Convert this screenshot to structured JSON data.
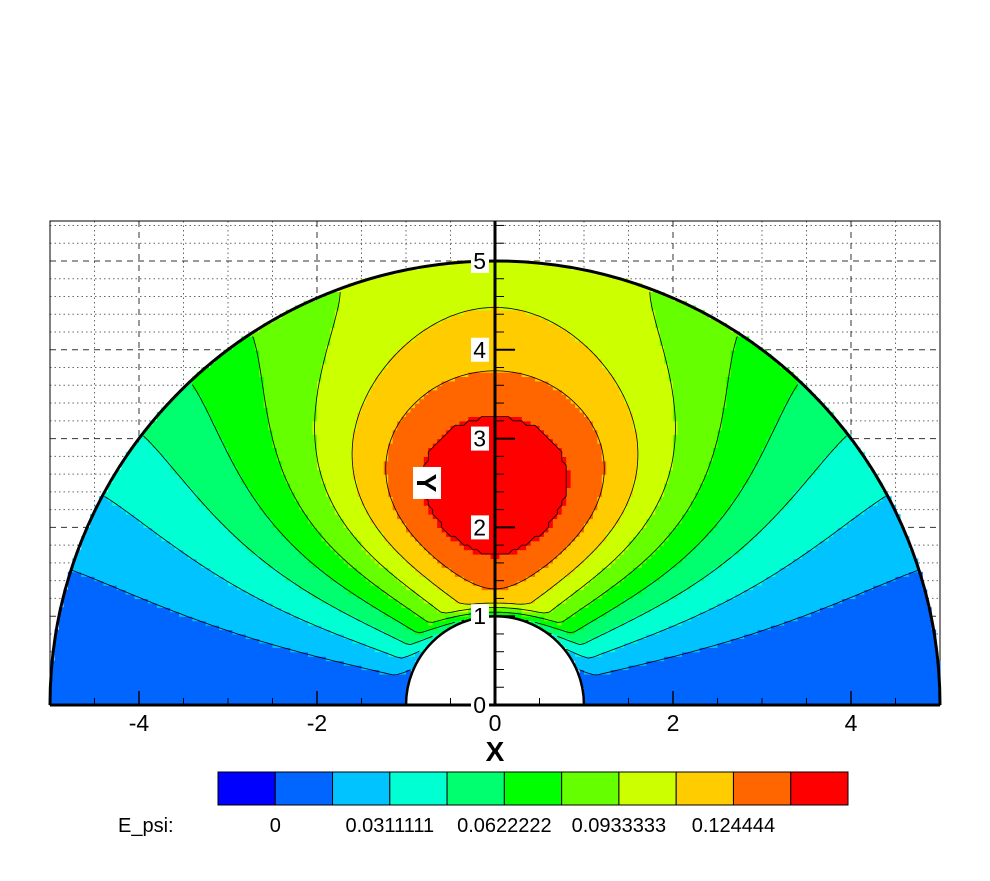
{
  "chart_data": {
    "type": "contour",
    "xlabel": "X",
    "ylabel": "Y",
    "xlim": [
      -5,
      5
    ],
    "ylim": [
      0,
      5.45
    ],
    "x_ticks": [
      -4,
      -2,
      0,
      2,
      4
    ],
    "y_ticks": [
      0,
      1,
      2,
      3,
      4,
      5
    ],
    "grid": true,
    "domain": {
      "shape": "half-annulus",
      "inner_radius": 1,
      "outer_radius": 5
    },
    "field": {
      "name": "E_psi",
      "peak_value": 0.14,
      "peak_location": [
        0,
        2.4
      ]
    },
    "colorbar": {
      "label": "E_psi:",
      "levels": [
        0,
        0.0155556,
        0.0311111,
        0.0466667,
        0.0622222,
        0.0777778,
        0.0933333,
        0.108889,
        0.124444,
        0.14
      ],
      "tick_labels": [
        "0",
        "0.0311111",
        "0.0622222",
        "0.0933333",
        "0.124444"
      ],
      "tick_values": [
        0,
        0.0311111,
        0.0622222,
        0.0933333,
        0.124444
      ],
      "colors": [
        "#0000ff",
        "#0066ff",
        "#00c3ff",
        "#00ffd2",
        "#00ff6e",
        "#00ff00",
        "#66ff00",
        "#ccff00",
        "#ffcc00",
        "#ff6600",
        "#ff0000"
      ]
    }
  }
}
